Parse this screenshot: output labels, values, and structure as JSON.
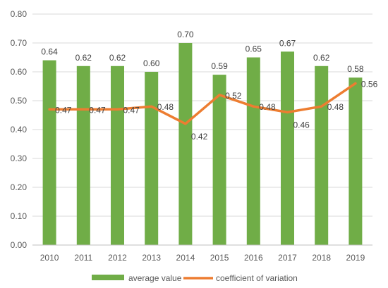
{
  "chart_data": {
    "type": "bar",
    "categories": [
      "2010",
      "2011",
      "2012",
      "2013",
      "2014",
      "2015",
      "2016",
      "2017",
      "2018",
      "2019"
    ],
    "series": [
      {
        "name": "average value",
        "chart": "bar",
        "color": "#70ad47",
        "values": [
          0.64,
          0.62,
          0.62,
          0.6,
          0.7,
          0.59,
          0.65,
          0.67,
          0.62,
          0.58
        ],
        "labels": [
          "0.64",
          "0.62",
          "0.62",
          "0.60",
          "0.70",
          "0.59",
          "0.65",
          "0.67",
          "0.62",
          "0.58"
        ]
      },
      {
        "name": "coefficient of variation",
        "chart": "line",
        "color": "#ed7d31",
        "values": [
          0.47,
          0.47,
          0.47,
          0.48,
          0.42,
          0.52,
          0.48,
          0.46,
          0.48,
          0.56
        ],
        "labels": [
          "0.47",
          "0.47",
          "0.47",
          "0.48",
          "0.42",
          "0.52",
          "0.48",
          "0.46",
          "0.48",
          "0.56"
        ]
      }
    ],
    "ylim": [
      0,
      0.8
    ],
    "yticks": [
      "0.00",
      "0.10",
      "0.20",
      "0.30",
      "0.40",
      "0.50",
      "0.60",
      "0.70",
      "0.80"
    ],
    "grid": true,
    "legend_position": "bottom"
  }
}
